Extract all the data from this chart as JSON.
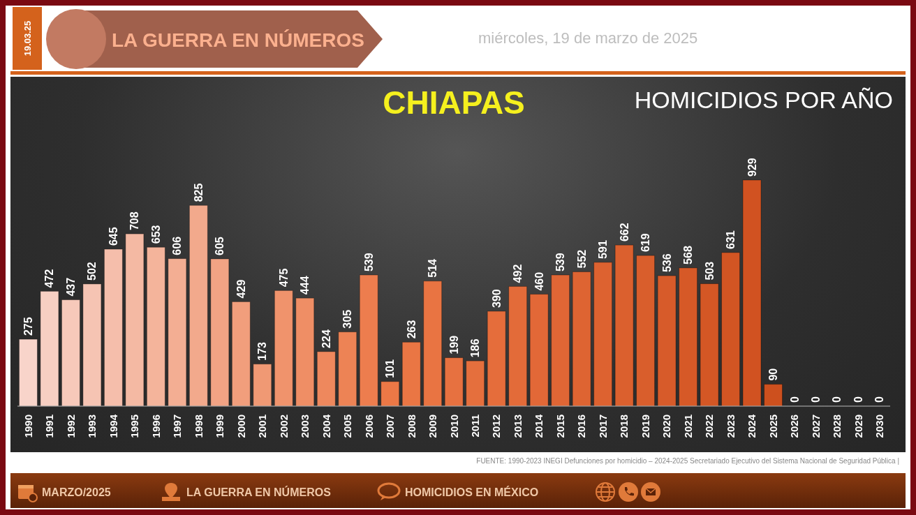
{
  "chart_data": {
    "type": "bar",
    "title": "CHIAPAS",
    "subtitle": "HOMICIDIOS POR AÑO",
    "annotations": [
      "19.03.25",
      "LA GUERRA EN NÚMEROS",
      "miércoles, 19 de marzo de 2025",
      "FUENTE: 1990-2023 INEGI Defunciones por homicidio – 2024-2025 Secretariado Ejecutivo del Sistema Nacional de Seguridad Pública |",
      "MARZO/2025",
      "LA GUERRA EN NÚMEROS",
      "HOMICIDIOS EN MÉXICO"
    ],
    "categories": [
      "1990",
      "1991",
      "1992",
      "1993",
      "1994",
      "1995",
      "1996",
      "1997",
      "1998",
      "1999",
      "2000",
      "2001",
      "2002",
      "2003",
      "2004",
      "2005",
      "2006",
      "2007",
      "2008",
      "2009",
      "2010",
      "2011",
      "2012",
      "2013",
      "2014",
      "2015",
      "2016",
      "2017",
      "2018",
      "2019",
      "2020",
      "2021",
      "2022",
      "2023",
      "2024",
      "2025",
      "2026",
      "2027",
      "2028",
      "2029",
      "2030"
    ],
    "values": [
      275,
      472,
      437,
      502,
      645,
      708,
      653,
      606,
      825,
      605,
      429,
      173,
      475,
      444,
      224,
      305,
      539,
      101,
      263,
      514,
      199,
      186,
      390,
      492,
      460,
      539,
      552,
      591,
      662,
      619,
      536,
      568,
      503,
      631,
      929,
      90,
      0,
      0,
      0,
      0,
      0
    ],
    "colors": [
      "#f8d4ca",
      "#f7cfc2",
      "#f7c9ba",
      "#f6c4b3",
      "#f5beab",
      "#f4b9a3",
      "#f4b49b",
      "#f3ae93",
      "#f2a98c",
      "#f2a384",
      "#f19e7c",
      "#f09974",
      "#f0936c",
      "#ef8e65",
      "#ee885d",
      "#ed8355",
      "#ed7d4e",
      "#ec7846",
      "#ea7644",
      "#e97442",
      "#e77140",
      "#e56f3d",
      "#e56d3b",
      "#e36b39",
      "#e26837",
      "#e06635",
      "#de6432",
      "#dd6230",
      "#db602e",
      "#d95e2c",
      "#d75b2a",
      "#d65927",
      "#d45725",
      "#d25523",
      "#d15221",
      "#cd501e",
      null,
      null,
      null,
      null,
      null
    ],
    "data_labels": true,
    "grid": false,
    "legend": false
  }
}
